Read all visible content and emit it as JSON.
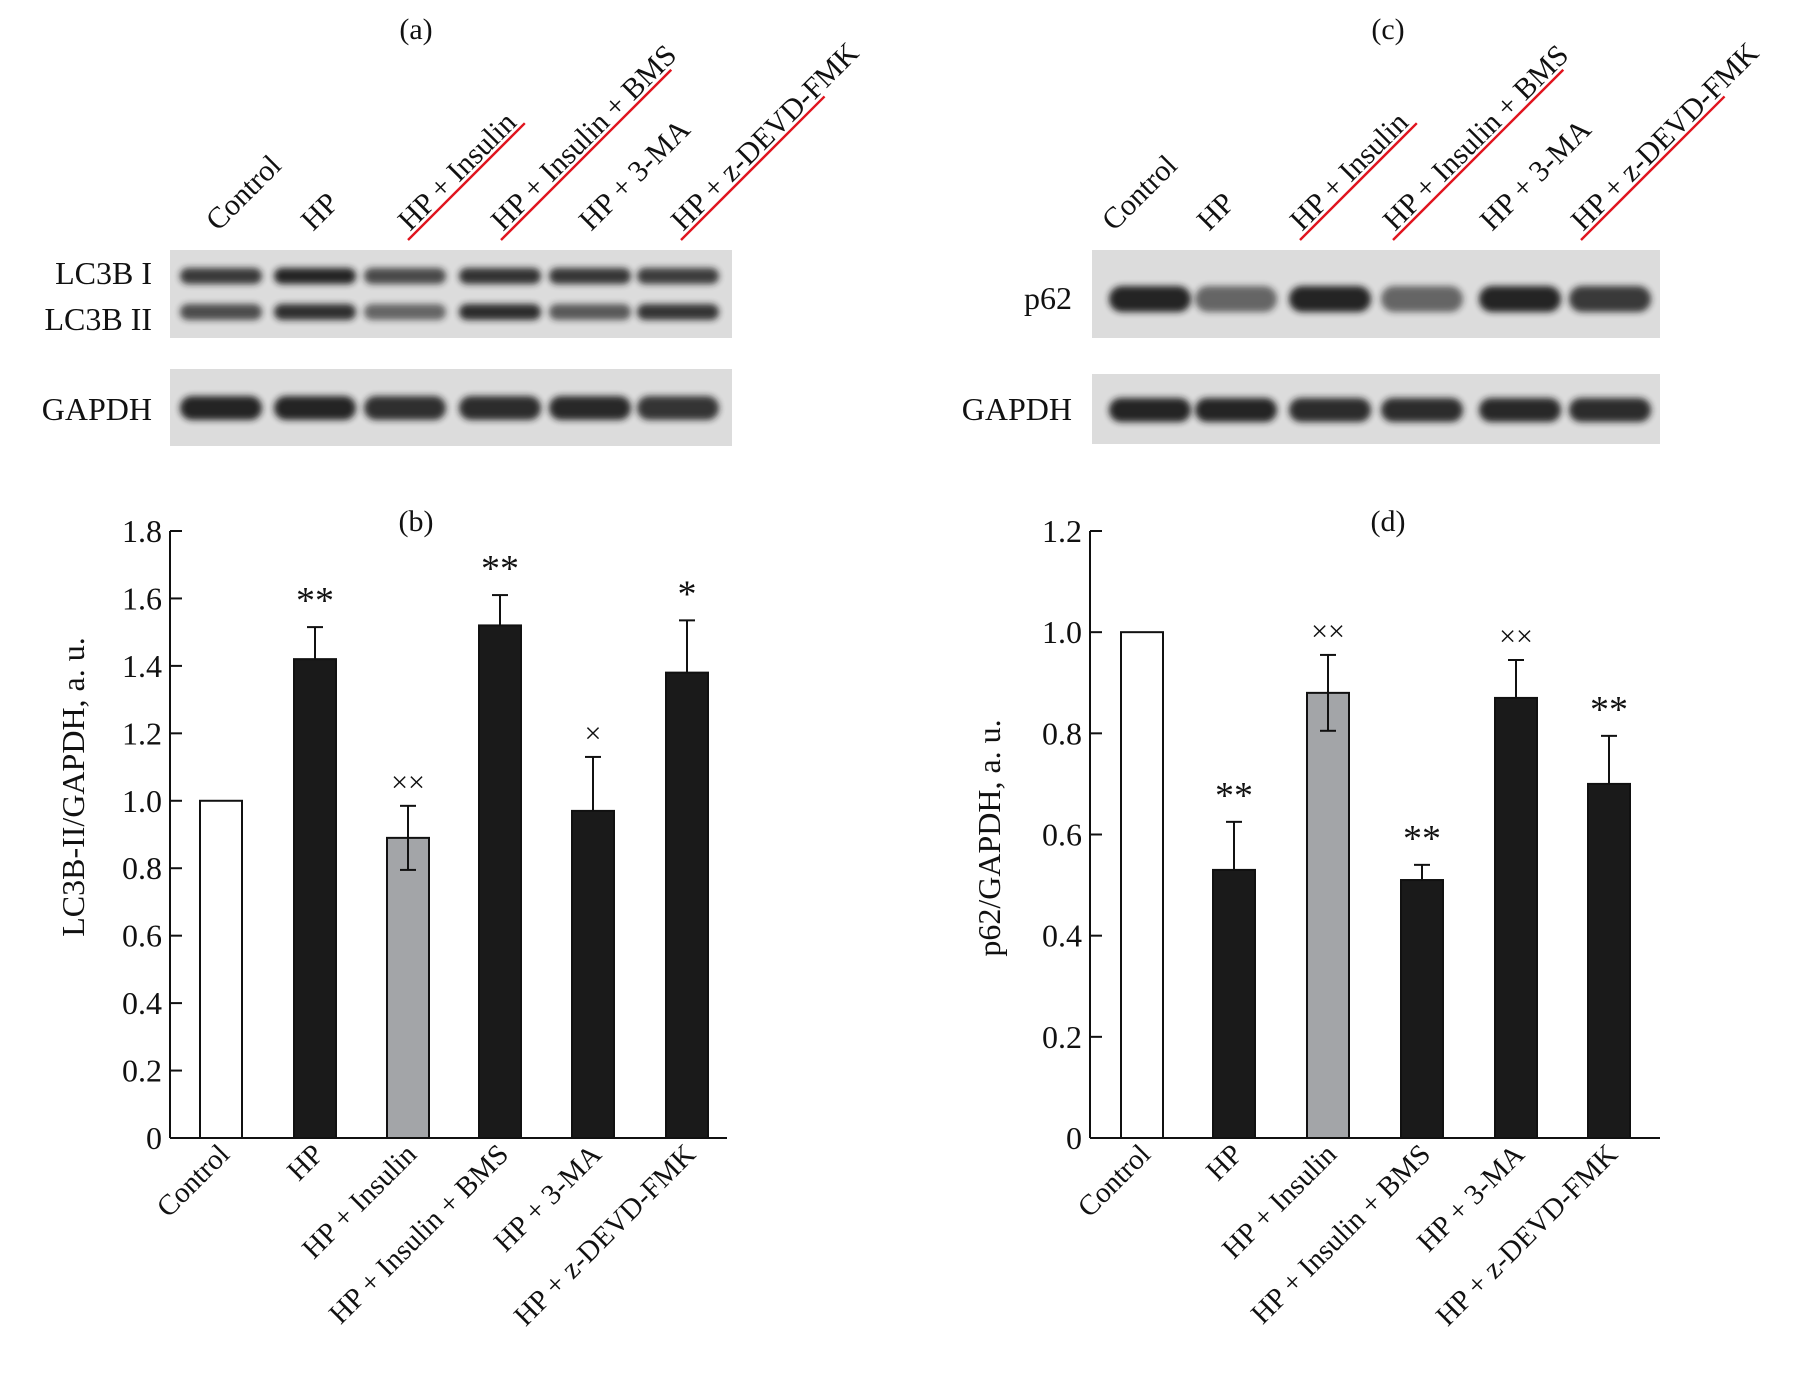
{
  "panels": {
    "a": "(a)",
    "b": "(b)",
    "c": "(c)",
    "d": "(d)"
  },
  "blot_a": {
    "lanes": [
      "Control",
      "HP",
      "HP + Insulin",
      "HP + Insulin + BMS",
      "HP + 3-MA",
      "HP + z-DEVD-FMK"
    ],
    "underlined_lanes": [
      2,
      3,
      5
    ],
    "band_labels": [
      "LC3B I",
      "LC3B II"
    ],
    "loading_label": "GAPDH",
    "band_intensity": {
      "LC3B I": [
        0.82,
        0.95,
        0.72,
        0.86,
        0.84,
        0.8
      ],
      "LC3B II": [
        0.7,
        0.88,
        0.55,
        0.9,
        0.62,
        0.85
      ],
      "GAPDH": [
        0.95,
        0.95,
        0.88,
        0.9,
        0.92,
        0.85
      ]
    }
  },
  "blot_c": {
    "lanes": [
      "Control",
      "HP",
      "HP + Insulin",
      "HP + Insulin + BMS",
      "HP + 3-MA",
      "HP + z-DEVD-FMK"
    ],
    "underlined_lanes": [
      2,
      3,
      5
    ],
    "band_labels": [
      "p62"
    ],
    "loading_label": "GAPDH",
    "band_intensity": {
      "p62": [
        0.95,
        0.55,
        0.95,
        0.55,
        0.95,
        0.82
      ],
      "GAPDH": [
        0.95,
        0.95,
        0.9,
        0.9,
        0.92,
        0.9
      ]
    }
  },
  "colors": {
    "dark_bar": "#1a1a1a",
    "gray_bar": "#a3a5a8",
    "open_bar": "#ffffff",
    "underline_red": "#e0141e",
    "blot_bg": "#dcdcdc",
    "band": "#1c1c1c"
  },
  "chart_data": [
    {
      "panel": "b",
      "type": "bar",
      "title": "(b)",
      "xlabel": "",
      "ylabel": "LC3B-II/GAPDH, a. u.",
      "ylim": [
        0,
        1.8
      ],
      "yticks": [
        "0",
        "0.2",
        "0.4",
        "0.6",
        "0.8",
        "1.0",
        "1.2",
        "1.4",
        "1.6",
        "1.8"
      ],
      "categories": [
        "Control",
        "HP",
        "HP + Insulin",
        "HP + Insulin + BMS",
        "HP + 3-MA",
        "HP + z-DEVD-FMK"
      ],
      "values": [
        1.0,
        1.42,
        0.89,
        1.52,
        0.97,
        1.38
      ],
      "errors": [
        0,
        0.095,
        0.095,
        0.09,
        0.16,
        0.155
      ],
      "fills": [
        "open",
        "dark",
        "gray",
        "dark",
        "dark",
        "dark"
      ],
      "annotations": [
        "",
        "**",
        "××",
        "**",
        "×",
        "*"
      ]
    },
    {
      "panel": "d",
      "type": "bar",
      "title": "(d)",
      "xlabel": "",
      "ylabel": "p62/GAPDH, a. u.",
      "ylim": [
        0,
        1.2
      ],
      "yticks": [
        "0",
        "0.2",
        "0.4",
        "0.6",
        "0.8",
        "1.0",
        "1.2"
      ],
      "categories": [
        "Control",
        "HP",
        "HP + Insulin",
        "HP + Insulin + BMS",
        "HP + 3-MA",
        "HP + z-DEVD-FMK"
      ],
      "values": [
        1.0,
        0.53,
        0.88,
        0.51,
        0.87,
        0.7
      ],
      "errors": [
        0,
        0.095,
        0.075,
        0.03,
        0.075,
        0.095
      ],
      "fills": [
        "open",
        "dark",
        "gray",
        "dark",
        "dark",
        "dark"
      ],
      "annotations": [
        "",
        "**",
        "××",
        "**",
        "××",
        "**"
      ]
    }
  ]
}
